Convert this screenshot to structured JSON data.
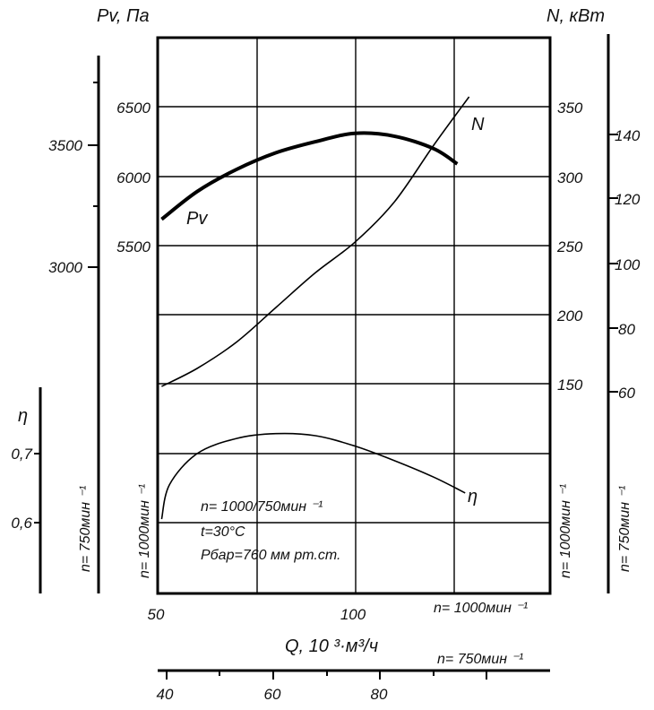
{
  "chart_data": {
    "type": "line",
    "axes": {
      "left_pv_label": "Pv, Па",
      "right_n_label": "N, кВт",
      "x_label": "Q, 10 ³·м³/ч",
      "eta_label": "η",
      "pv_1000_ticks": [
        "6500",
        "6000",
        "5500"
      ],
      "pv_750_ticks": [
        "3500",
        "3000"
      ],
      "n_1000_ticks": [
        "350",
        "300",
        "250",
        "200",
        "150"
      ],
      "n_750_ticks": [
        "140",
        "120",
        "100",
        "80",
        "60"
      ],
      "eta_ticks": [
        "0,7",
        "0,6"
      ],
      "q_1000_ticks": [
        "50",
        "100"
      ],
      "q_750_ticks": [
        "40",
        "60",
        "80"
      ],
      "rpm_750": "n= 750мин ⁻¹",
      "rpm_1000": "n= 1000мин ⁻¹",
      "q_1000_label": "n= 1000мин ⁻¹",
      "q_750_label": "n= 750мин ⁻¹"
    },
    "series": [
      {
        "name": "Pv",
        "unit": "Па",
        "x": [
          51,
          60,
          70,
          80,
          90,
          100,
          110,
          120,
          126
        ],
        "y": [
          5690,
          5890,
          6050,
          6170,
          6250,
          6310,
          6290,
          6200,
          6090
        ]
      },
      {
        "name": "N",
        "unit": "кВт",
        "x": [
          51,
          60,
          70,
          80,
          90,
          100,
          110,
          120,
          129
        ],
        "y": [
          148,
          161,
          180,
          205,
          230,
          252,
          281,
          322,
          357
        ]
      },
      {
        "name": "η",
        "x": [
          51,
          53,
          60,
          70,
          80,
          90,
          100,
          110,
          120,
          128
        ],
        "y": [
          0.605,
          0.655,
          0.7,
          0.722,
          0.729,
          0.726,
          0.711,
          0.69,
          0.666,
          0.643
        ]
      }
    ],
    "annotation": {
      "line1": "n= 1000/750мин ⁻¹",
      "line2": "t=30°C",
      "line3": "Pбар=760 мм рт.ст."
    },
    "grid": true
  }
}
